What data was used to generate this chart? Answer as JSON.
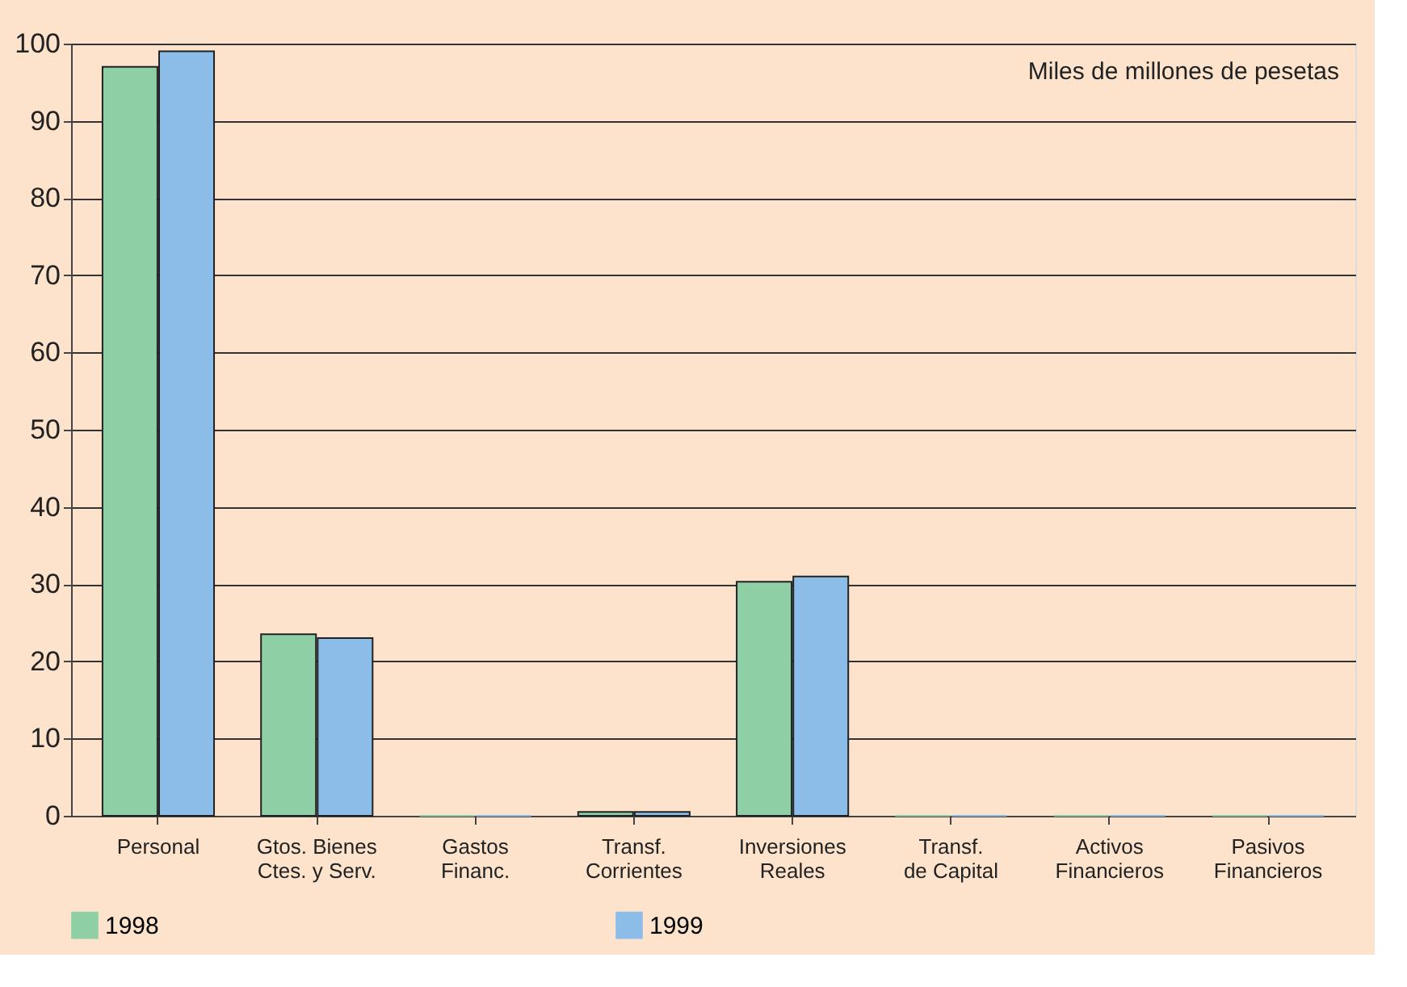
{
  "chart_data": {
    "type": "bar",
    "categories": [
      "Personal",
      "Gtos. Bienes\nCtes. y Serv.",
      "Gastos\nFinanc.",
      "Transf.\nCorrientes",
      "Inversiones\nReales",
      "Transf.\nde Capital",
      "Activos\nFinancieros",
      "Pasivos\nFinancieros"
    ],
    "series": [
      {
        "name": "1998",
        "color": "#8fcfa5",
        "values": [
          97,
          23.5,
          0,
          0.5,
          30.3,
          0,
          0,
          0
        ]
      },
      {
        "name": "1999",
        "color": "#8bbde8",
        "values": [
          99,
          23,
          0,
          0.5,
          31,
          0,
          0,
          0
        ]
      }
    ],
    "ylim": [
      0,
      100
    ],
    "yticks": [
      0,
      10,
      20,
      30,
      40,
      50,
      60,
      70,
      80,
      90,
      100
    ],
    "grid": "y",
    "legend": "bottom",
    "annotations": [
      "Miles de millones de pesetas"
    ]
  }
}
